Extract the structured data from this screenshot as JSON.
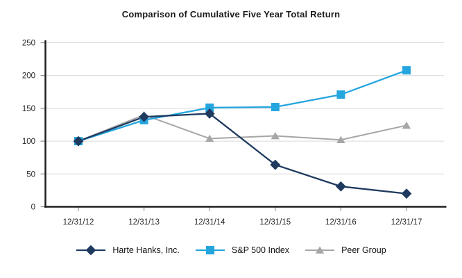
{
  "chart_data": {
    "type": "line",
    "title": "Comparison of Cumulative Five Year Total Return",
    "categories": [
      "12/31/12",
      "12/31/13",
      "12/31/14",
      "12/31/15",
      "12/31/16",
      "12/31/17"
    ],
    "series": [
      {
        "name": "Harte Hanks, Inc.",
        "marker": "diamond",
        "color": "#1e3a5f",
        "line_width": 2.3,
        "values": [
          100,
          137,
          142,
          64,
          31,
          20
        ]
      },
      {
        "name": "S&P 500 Index",
        "marker": "square",
        "color": "#25a5de",
        "line_width": 2.3,
        "values": [
          100,
          132,
          151,
          152,
          171,
          208
        ]
      },
      {
        "name": "Peer Group",
        "marker": "triangle",
        "color": "#a6a6a6",
        "line_width": 2.0,
        "values": [
          100,
          140,
          104,
          108,
          102,
          124
        ]
      }
    ],
    "ylim": [
      0,
      250
    ],
    "yticks": [
      0,
      50,
      100,
      150,
      200,
      250
    ],
    "xlabel": "",
    "ylabel": "",
    "grid": "horizontal",
    "legend_position": "bottom",
    "colors": {
      "axis": "#1f1f1f",
      "gridline": "#d9d9d9",
      "tick": "#8c8c8c",
      "axis_label": "#262626",
      "background": "#ffffff"
    }
  }
}
